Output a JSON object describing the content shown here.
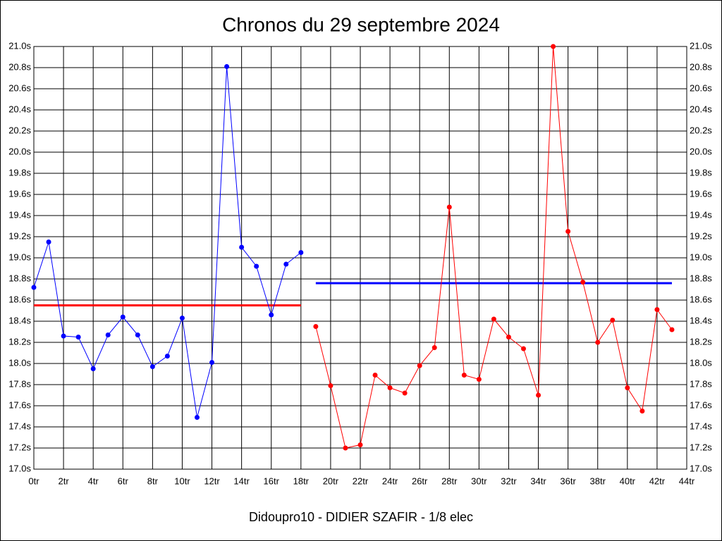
{
  "chart_data": {
    "type": "line",
    "title": "Chronos du 29 septembre 2024",
    "subtitle": "Didoupro10 - DIDIER SZAFIR - 1/8 elec",
    "xlim": [
      0,
      44
    ],
    "xticks": [
      {
        "value": 0,
        "label": "0tr"
      },
      {
        "value": 2,
        "label": "2tr"
      },
      {
        "value": 4,
        "label": "4tr"
      },
      {
        "value": 6,
        "label": "6tr"
      },
      {
        "value": 8,
        "label": "8tr"
      },
      {
        "value": 10,
        "label": "10tr"
      },
      {
        "value": 12,
        "label": "12tr"
      },
      {
        "value": 14,
        "label": "14tr"
      },
      {
        "value": 16,
        "label": "16tr"
      },
      {
        "value": 18,
        "label": "18tr"
      },
      {
        "value": 20,
        "label": "20tr"
      },
      {
        "value": 22,
        "label": "22tr"
      },
      {
        "value": 24,
        "label": "24tr"
      },
      {
        "value": 26,
        "label": "26tr"
      },
      {
        "value": 28,
        "label": "28tr"
      },
      {
        "value": 30,
        "label": "30tr"
      },
      {
        "value": 32,
        "label": "32tr"
      },
      {
        "value": 34,
        "label": "34tr"
      },
      {
        "value": 36,
        "label": "36tr"
      },
      {
        "value": 38,
        "label": "38tr"
      },
      {
        "value": 40,
        "label": "40tr"
      },
      {
        "value": 42,
        "label": "42tr"
      },
      {
        "value": 44,
        "label": "44tr"
      }
    ],
    "ylim": [
      17.0,
      21.0
    ],
    "yticks": [
      {
        "value": 17.0,
        "label": "17.0s"
      },
      {
        "value": 17.2,
        "label": "17.2s"
      },
      {
        "value": 17.4,
        "label": "17.4s"
      },
      {
        "value": 17.6,
        "label": "17.6s"
      },
      {
        "value": 17.8,
        "label": "17.8s"
      },
      {
        "value": 18.0,
        "label": "18.0s"
      },
      {
        "value": 18.2,
        "label": "18.2s"
      },
      {
        "value": 18.4,
        "label": "18.4s"
      },
      {
        "value": 18.6,
        "label": "18.6s"
      },
      {
        "value": 18.8,
        "label": "18.8s"
      },
      {
        "value": 19.0,
        "label": "19.0s"
      },
      {
        "value": 19.2,
        "label": "19.2s"
      },
      {
        "value": 19.4,
        "label": "19.4s"
      },
      {
        "value": 19.6,
        "label": "19.6s"
      },
      {
        "value": 19.8,
        "label": "19.8s"
      },
      {
        "value": 20.0,
        "label": "20.0s"
      },
      {
        "value": 20.2,
        "label": "20.2s"
      },
      {
        "value": 20.4,
        "label": "20.4s"
      },
      {
        "value": 20.6,
        "label": "20.6s"
      },
      {
        "value": 20.8,
        "label": "20.8s"
      },
      {
        "value": 21.0,
        "label": "21.0s"
      }
    ],
    "grid": true,
    "series": [
      {
        "color": "#0000ff",
        "x": [
          0,
          1,
          2,
          3,
          4,
          5,
          6,
          7,
          8,
          9,
          10,
          11,
          12,
          13,
          14,
          15,
          16,
          17,
          18
        ],
        "values": [
          18.72,
          19.15,
          18.26,
          18.25,
          17.95,
          18.27,
          18.44,
          18.27,
          17.97,
          18.07,
          18.43,
          17.49,
          18.01,
          20.81,
          19.1,
          18.92,
          18.46,
          18.94,
          19.05
        ]
      },
      {
        "color": "#ff0000",
        "x": [
          19,
          20,
          21,
          22,
          23,
          24,
          25,
          26,
          27,
          28,
          29,
          30,
          31,
          32,
          33,
          34,
          35,
          36,
          37,
          38,
          39,
          40,
          41,
          42,
          43
        ],
        "values": [
          18.35,
          17.79,
          17.2,
          17.23,
          17.89,
          17.77,
          17.72,
          17.98,
          18.15,
          19.48,
          17.89,
          17.85,
          18.42,
          18.25,
          18.14,
          17.7,
          21.0,
          19.25,
          18.77,
          18.2,
          18.41,
          17.77,
          17.55,
          18.51,
          18.32
        ]
      }
    ],
    "reference_lines": [
      {
        "color": "#ff0000",
        "value": 18.55,
        "x": [
          0,
          18
        ]
      },
      {
        "color": "#0000ff",
        "value": 18.76,
        "x": [
          19,
          43
        ]
      }
    ]
  }
}
